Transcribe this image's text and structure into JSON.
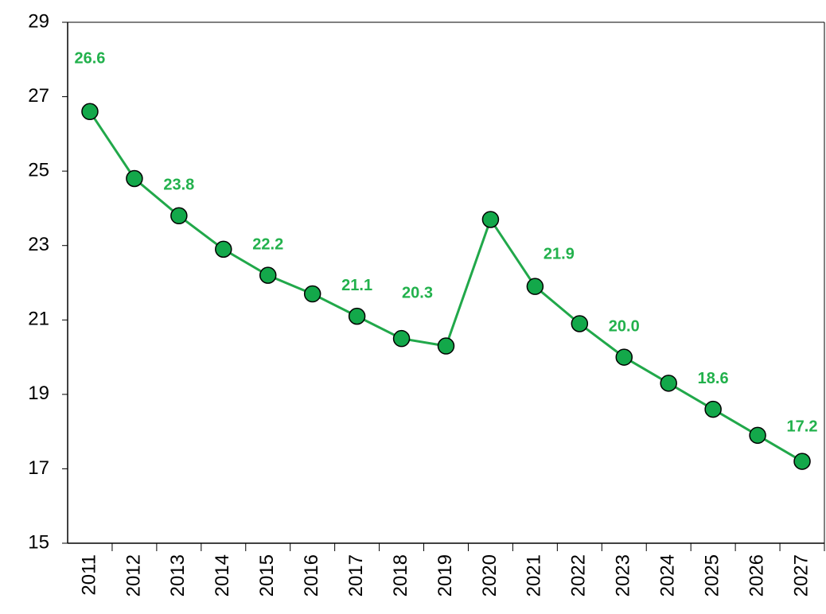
{
  "chart_data": {
    "type": "line",
    "categories": [
      "2011",
      "2012",
      "2013",
      "2014",
      "2015",
      "2016",
      "2017",
      "2018",
      "2019",
      "2020",
      "2021",
      "2022",
      "2023",
      "2024",
      "2025",
      "2026",
      "2027"
    ],
    "series": [
      {
        "color": "#21a84a",
        "values": [
          26.6,
          24.8,
          23.8,
          22.9,
          22.2,
          21.7,
          21.1,
          20.5,
          20.3,
          23.7,
          21.9,
          20.9,
          20.0,
          19.3,
          18.6,
          17.9,
          17.2
        ],
        "value_labels": [
          "26.6",
          null,
          "23.8",
          null,
          "22.2",
          null,
          "21.1",
          null,
          "20.3",
          null,
          "21.9",
          null,
          "20.0",
          null,
          "18.6",
          null,
          "17.2"
        ]
      }
    ],
    "label_color": "#22b14c",
    "ylim": [
      15,
      29
    ],
    "yticks": [
      15,
      17,
      19,
      21,
      23,
      25,
      27,
      29
    ],
    "grid": false
  }
}
